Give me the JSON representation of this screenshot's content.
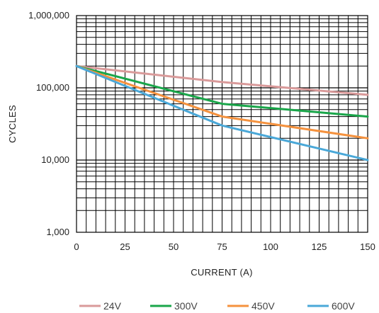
{
  "chart_data": {
    "type": "line",
    "xlabel": "CURRENT (A)",
    "ylabel": "CYCLES",
    "yscale": "log",
    "xlim": [
      0,
      150
    ],
    "ylim": [
      1000,
      1000000
    ],
    "grid": true,
    "legend_position": "bottom",
    "x_ticks": [
      0,
      25,
      50,
      75,
      100,
      125,
      150
    ],
    "y_ticks": [
      1000,
      10000,
      100000,
      1000000
    ],
    "x_tick_labels": [
      "0",
      "25",
      "50",
      "75",
      "100",
      "125",
      "150"
    ],
    "y_tick_labels": [
      "1,000",
      "10,000",
      "100,000",
      "1,000,000"
    ],
    "series": [
      {
        "name": "24V",
        "color": "#d99a9a",
        "x": [
          0,
          75,
          150
        ],
        "y": [
          200000,
          120000,
          80000
        ]
      },
      {
        "name": "300V",
        "color": "#1aa64a",
        "x": [
          0,
          75,
          150
        ],
        "y": [
          200000,
          60000,
          40000
        ]
      },
      {
        "name": "450V",
        "color": "#f5923e",
        "x": [
          0,
          75,
          150
        ],
        "y": [
          200000,
          40000,
          20000
        ]
      },
      {
        "name": "600V",
        "color": "#4aa8d8",
        "x": [
          0,
          75,
          150
        ],
        "y": [
          200000,
          30000,
          10000
        ]
      }
    ]
  }
}
